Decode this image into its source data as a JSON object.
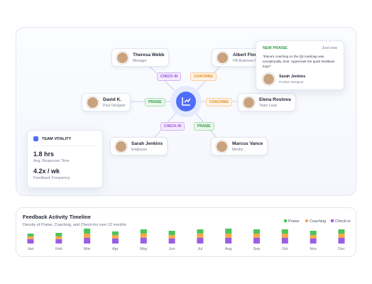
{
  "network": {
    "nodes": [
      {
        "name": "Theresa Webb",
        "role": "Manager"
      },
      {
        "name": "Albert Flores",
        "role": "HR Business P"
      },
      {
        "name": "David K.",
        "role": "Peer Designer"
      },
      {
        "name": "Elena Rostova",
        "role": "Team Lead"
      },
      {
        "name": "Sarah Jenkins",
        "role": "Employee"
      },
      {
        "name": "Marcus Vance",
        "role": "Mentor"
      }
    ],
    "edges": [
      "CHECK-IN",
      "COACHING",
      "PRAISE",
      "COACHING",
      "CHECK-IN",
      "PRAISE"
    ]
  },
  "praise": {
    "label": "NEW PRAISE",
    "time": "Just now",
    "quote": "“Elena's coaching on the Q3 roadmap was exceptionally clear. Appreciate the quick feedback loop!”",
    "author": "Sarah Jenkins",
    "role": "Product Designer"
  },
  "vitality": {
    "title": "TEAM VITALITY",
    "metric1": "1.8 hrs",
    "label1": "Avg. Response Time",
    "metric2": "4.2x / wk",
    "label2": "Feedback Frequency"
  },
  "chart_data": {
    "type": "bar",
    "title": "Feedback Activity Timeline",
    "subtitle": "Density of Praise, Coaching, and Check-ins over 12 months",
    "categories": [
      "Jan",
      "Feb",
      "Mar",
      "Apr",
      "May",
      "Jun",
      "Jul",
      "Aug",
      "Sep",
      "Oct",
      "Nov",
      "Dec"
    ],
    "series": [
      {
        "name": "Check-in",
        "color": "#9b5de5",
        "values": [
          6,
          6,
          8,
          7,
          8,
          7,
          8,
          8,
          8,
          8,
          7,
          8
        ]
      },
      {
        "name": "Coaching",
        "color": "#f6a94b",
        "values": [
          4,
          4,
          6,
          5,
          6,
          5,
          6,
          6,
          6,
          6,
          5,
          6
        ]
      },
      {
        "name": "Praise",
        "color": "#4cc45a",
        "values": [
          4,
          5,
          7,
          5,
          6,
          6,
          6,
          7,
          6,
          6,
          6,
          6
        ]
      }
    ]
  }
}
